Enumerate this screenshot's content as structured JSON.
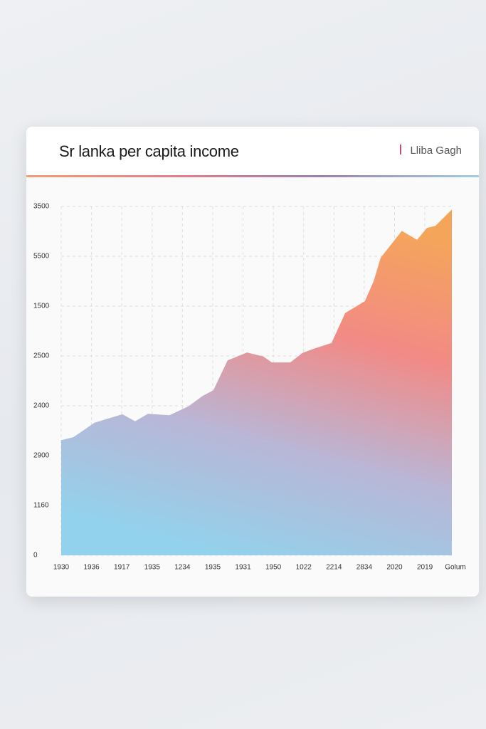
{
  "chart_data": {
    "type": "area",
    "title": "Sr lanka per capita income",
    "legend": "Lliba Gagh",
    "xlabel": "Golum",
    "x": [
      0,
      0.4,
      1.1,
      2.02,
      2.44,
      2.86,
      3.57,
      4.2,
      4.67,
      5.02,
      5.49,
      6.13,
      6.67,
      6.95,
      7.56,
      7.96,
      8.31,
      8.92,
      9.37,
      10.02,
      10.31,
      10.54,
      11.24,
      11.74,
      12.07,
      12.35,
      12.89
    ],
    "values": [
      2.31,
      2.37,
      2.66,
      2.83,
      2.69,
      2.84,
      2.81,
      2.99,
      3.2,
      3.31,
      3.91,
      4.07,
      3.99,
      3.87,
      3.87,
      4.06,
      4.14,
      4.26,
      4.86,
      5.1,
      5.5,
      5.97,
      6.51,
      6.33,
      6.57,
      6.61,
      6.94
    ],
    "xlim": [
      0,
      12.89
    ],
    "xticks": [
      {
        "value": 0,
        "label": "1930"
      },
      {
        "value": 1,
        "label": "1936"
      },
      {
        "value": 2,
        "label": "1917"
      },
      {
        "value": 3,
        "label": "1935"
      },
      {
        "value": 4,
        "label": "1234"
      },
      {
        "value": 5,
        "label": "1935"
      },
      {
        "value": 6,
        "label": "1931"
      },
      {
        "value": 7,
        "label": "1950"
      },
      {
        "value": 8,
        "label": "1022"
      },
      {
        "value": 9,
        "label": "2214"
      },
      {
        "value": 10,
        "label": "2834"
      },
      {
        "value": 11,
        "label": "2020"
      },
      {
        "value": 12,
        "label": "2019"
      }
    ],
    "ylim": [
      0,
      7
    ],
    "yticks": [
      0,
      {
        "value": 1,
        "label": "1160"
      },
      {
        "value": 2,
        "label": "2900"
      },
      {
        "value": 3,
        "label": "2400"
      },
      {
        "value": 4,
        "label": "2500"
      },
      {
        "value": 5,
        "label": "1500"
      },
      {
        "value": 6,
        "label": "5500"
      },
      {
        "value": 7,
        "label": "3500"
      }
    ],
    "grid": true,
    "gradient": [
      "#f5a55a",
      "#f28a86",
      "#b9b6d6",
      "#92d2ec"
    ]
  }
}
